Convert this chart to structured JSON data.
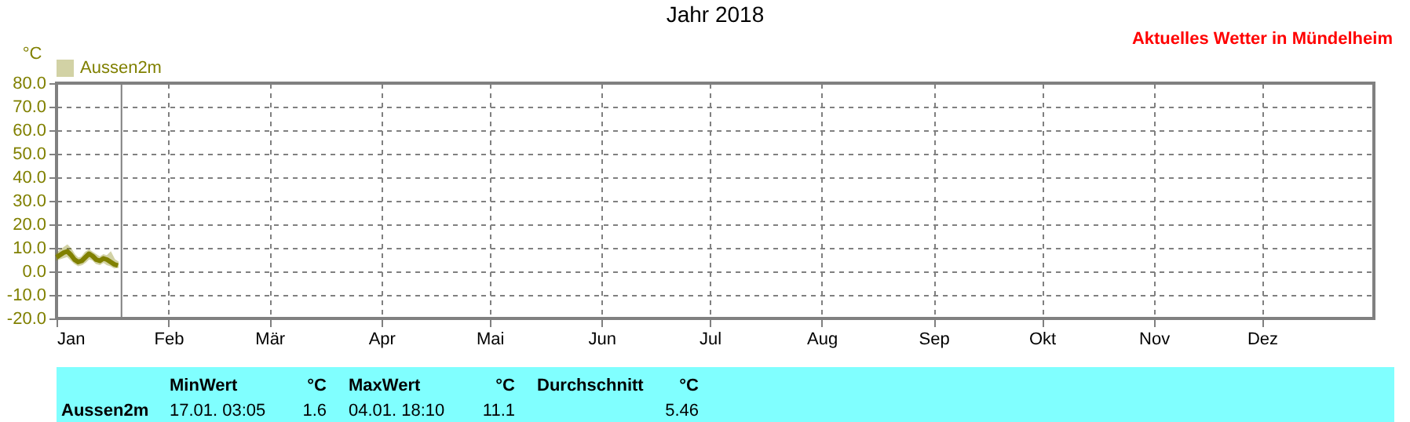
{
  "chart_data": {
    "type": "line",
    "title": "Jahr 2018",
    "ylabel": "°C",
    "x": [
      "2018-01-01",
      "2018-01-02",
      "2018-01-03",
      "2018-01-04",
      "2018-01-05",
      "2018-01-06",
      "2018-01-07",
      "2018-01-08",
      "2018-01-09",
      "2018-01-10",
      "2018-01-11",
      "2018-01-12",
      "2018-01-13",
      "2018-01-14",
      "2018-01-15",
      "2018-01-16",
      "2018-01-17",
      "2018-01-18"
    ],
    "series": [
      {
        "name": "Aussen2m",
        "color": "#808000",
        "values": [
          6,
          7,
          8,
          8.5,
          7,
          5,
          4,
          4.5,
          6,
          7.5,
          6.5,
          5,
          4.5,
          5.5,
          5,
          4,
          3,
          2.5
        ],
        "lower": [
          5,
          5.5,
          6,
          6.5,
          5,
          3.5,
          2.5,
          3,
          4,
          5.5,
          5,
          3.5,
          3,
          4,
          3,
          2.5,
          1.6,
          1.8
        ],
        "upper": [
          7.5,
          9,
          10,
          11.1,
          9.5,
          7,
          5.5,
          6,
          8,
          9,
          8,
          7,
          6,
          7,
          6.5,
          8,
          5,
          4
        ]
      }
    ],
    "xlim": [
      "2018-01-01",
      "2019-01-01"
    ],
    "xticks": [
      {
        "value": "2018-01-01",
        "label": "Jan"
      },
      {
        "value": "2018-02-01",
        "label": "Feb"
      },
      {
        "value": "2018-03-01",
        "label": "Mär"
      },
      {
        "value": "2018-04-01",
        "label": "Apr"
      },
      {
        "value": "2018-05-01",
        "label": "Mai"
      },
      {
        "value": "2018-06-01",
        "label": "Jun"
      },
      {
        "value": "2018-07-01",
        "label": "Jul"
      },
      {
        "value": "2018-08-01",
        "label": "Aug"
      },
      {
        "value": "2018-09-01",
        "label": "Sep"
      },
      {
        "value": "2018-10-01",
        "label": "Okt"
      },
      {
        "value": "2018-11-01",
        "label": "Nov"
      },
      {
        "value": "2018-12-01",
        "label": "Dez"
      }
    ],
    "ylim": [
      -20,
      80
    ],
    "yticks": [
      {
        "value": -20,
        "label": "-20.0"
      },
      {
        "value": -10,
        "label": "-10.0"
      },
      {
        "value": 0,
        "label": "0.0"
      },
      {
        "value": 10,
        "label": "10.0"
      },
      {
        "value": 20,
        "label": "20.0"
      },
      {
        "value": 30,
        "label": "30.0"
      },
      {
        "value": 40,
        "label": "40.0"
      },
      {
        "value": 50,
        "label": "50.0"
      },
      {
        "value": 60,
        "label": "60.0"
      },
      {
        "value": 70,
        "label": "70.0"
      },
      {
        "value": 80,
        "label": "80.0"
      }
    ],
    "ref_lines": [
      {
        "axis": "x",
        "value": "2018-01-19",
        "color": "#808080",
        "line_style": "solid"
      }
    ],
    "grid": true,
    "legend": "top left",
    "line_style": "solid",
    "marker": "none",
    "annotations": [
      "Aktuelles Wetter in Mündelheim",
      "Aussen2m",
      "MinWert",
      "°C",
      "17.01.  03:05",
      "1.6",
      "MaxWert",
      "°C",
      "04.01.  18:10",
      "11.1",
      "Durchschnitt",
      "°C",
      "5.46"
    ]
  }
}
